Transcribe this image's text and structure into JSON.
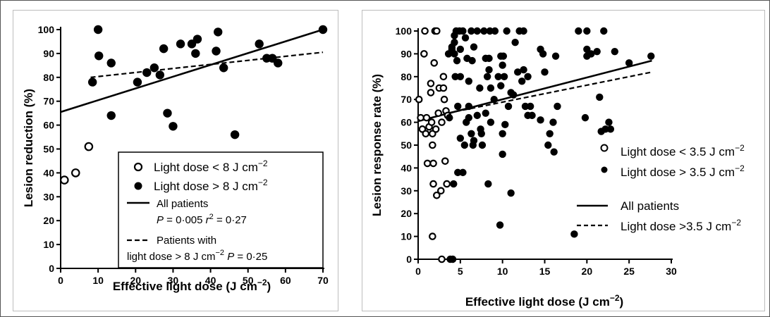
{
  "chart_data": [
    {
      "type": "scatter",
      "xlabel": "Effective light dose (J cm",
      "xlabel_sup": "−2",
      "xlabel_end": ")",
      "ylabel": "Lesion reduction (%)",
      "xlim": [
        0,
        70
      ],
      "ylim": [
        0,
        100
      ],
      "xticks": [
        "0",
        "10",
        "20",
        "30",
        "40",
        "50",
        "60",
        "70"
      ],
      "yticks": [
        "0",
        "10",
        "20",
        "30",
        "40",
        "50",
        "60",
        "70",
        "80",
        "90",
        "100"
      ],
      "series": [
        {
          "name": "Light dose < 8 J cm−2",
          "marker": "open-circle",
          "points": [
            [
              1,
              37
            ],
            [
              4,
              40
            ],
            [
              7.5,
              51
            ]
          ]
        },
        {
          "name": "Light dose > 8 J cm−2",
          "marker": "filled-circle",
          "points": [
            [
              8.5,
              78
            ],
            [
              10,
              100
            ],
            [
              10.2,
              89
            ],
            [
              13.5,
              86
            ],
            [
              13.5,
              64
            ],
            [
              20.5,
              78
            ],
            [
              23,
              82
            ],
            [
              25,
              84
            ],
            [
              26.5,
              81
            ],
            [
              27.5,
              92
            ],
            [
              28.5,
              65
            ],
            [
              30,
              59.5
            ],
            [
              32,
              94
            ],
            [
              35,
              94
            ],
            [
              36,
              90
            ],
            [
              36.5,
              96
            ],
            [
              41.5,
              91
            ],
            [
              42,
              99
            ],
            [
              43.5,
              84
            ],
            [
              46.5,
              56
            ],
            [
              53,
              94
            ],
            [
              55,
              88
            ],
            [
              56.5,
              88
            ],
            [
              58,
              86
            ],
            [
              70,
              100
            ]
          ]
        }
      ],
      "lines": [
        {
          "name": "All patients",
          "style": "solid",
          "from": [
            0,
            65.5
          ],
          "to": [
            70,
            100
          ]
        },
        {
          "name": "Patients with light dose > 8 J cm−2",
          "style": "dashed",
          "from": [
            8,
            80
          ],
          "to": [
            70,
            90.5
          ]
        }
      ],
      "legend": {
        "open_label": "Light dose < 8 J cm",
        "filled_label": "Light dose > 8 J cm",
        "unit_sup": "−2",
        "all_label": "All patients",
        "all_stats_p": "P",
        "all_stats_pval": " = 0·005",
        "all_stats_r": "r",
        "all_stats_r2": "2",
        "all_stats_rval": " = 0·27",
        "dashed_label_1": "Patients with",
        "dashed_label_2": "light dose > 8 J cm",
        "dashed_p": "P",
        "dashed_pval": " = 0·25"
      }
    },
    {
      "type": "scatter",
      "xlabel": "Effective light dose (J cm",
      "xlabel_sup": "−2",
      "xlabel_end": ")",
      "ylabel": "Lesion response rate (%)",
      "xlim": [
        0,
        30
      ],
      "ylim": [
        0,
        100
      ],
      "xticks": [
        "0",
        "5",
        "10",
        "15",
        "20",
        "25",
        "30"
      ],
      "yticks": [
        "0",
        "10",
        "20",
        "30",
        "40",
        "50",
        "60",
        "70",
        "80",
        "90",
        "100"
      ],
      "series": [
        {
          "name": "Light dose < 3.5 J cm−2",
          "marker": "open-circle",
          "points": [
            [
              0.1,
              70
            ],
            [
              0.3,
              62
            ],
            [
              0.5,
              57
            ],
            [
              0.7,
              90
            ],
            [
              0.8,
              100
            ],
            [
              0.9,
              55
            ],
            [
              1,
              62
            ],
            [
              1.1,
              42
            ],
            [
              1.3,
              58
            ],
            [
              1.5,
              77
            ],
            [
              1.5,
              73
            ],
            [
              1.6,
              60
            ],
            [
              1.7,
              55
            ],
            [
              1.7,
              50
            ],
            [
              1.8,
              42
            ],
            [
              1.8,
              33
            ],
            [
              1.7,
              10
            ],
            [
              1.9,
              86
            ],
            [
              2,
              100
            ],
            [
              2.1,
              57
            ],
            [
              2.2,
              100
            ],
            [
              2.2,
              28
            ],
            [
              2.4,
              64
            ],
            [
              2.5,
              75
            ],
            [
              2.7,
              30
            ],
            [
              2.8,
              0
            ],
            [
              2.8,
              60
            ],
            [
              3,
              80
            ],
            [
              3,
              75
            ],
            [
              3.1,
              70
            ],
            [
              3.2,
              43
            ],
            [
              3.3,
              65
            ],
            [
              3.4,
              33
            ],
            [
              3.5,
              63
            ]
          ]
        },
        {
          "name": "Light dose > 3.5 J cm−2",
          "marker": "filled-circle",
          "points": [
            [
              3.6,
              90
            ],
            [
              3.7,
              62
            ],
            [
              3.8,
              0
            ],
            [
              4,
              92
            ],
            [
              4,
              93
            ],
            [
              4.1,
              0
            ],
            [
              4.2,
              33
            ],
            [
              4.3,
              90
            ],
            [
              4.3,
              95
            ],
            [
              4.3,
              98
            ],
            [
              4.4,
              80
            ],
            [
              4.5,
              100
            ],
            [
              4.6,
              87
            ],
            [
              4.7,
              67
            ],
            [
              4.7,
              38
            ],
            [
              4.9,
              100
            ],
            [
              5,
              92
            ],
            [
              5,
              80
            ],
            [
              5,
              53
            ],
            [
              5.3,
              100
            ],
            [
              5.3,
              38
            ],
            [
              5.5,
              50
            ],
            [
              5.6,
              97
            ],
            [
              5.7,
              60
            ],
            [
              5.8,
              88
            ],
            [
              6,
              62
            ],
            [
              6,
              78
            ],
            [
              6,
              67
            ],
            [
              6.3,
              100
            ],
            [
              6.3,
              55
            ],
            [
              6.4,
              87
            ],
            [
              6.5,
              50
            ],
            [
              6.6,
              93
            ],
            [
              6.6,
              52
            ],
            [
              7,
              100
            ],
            [
              7,
              63
            ],
            [
              7.3,
              75
            ],
            [
              7.4,
              57
            ],
            [
              7.5,
              55
            ],
            [
              7.6,
              50
            ],
            [
              7.8,
              100
            ],
            [
              8,
              64
            ],
            [
              8,
              88
            ],
            [
              8.2,
              80
            ],
            [
              8.3,
              33
            ],
            [
              8.4,
              88
            ],
            [
              8.4,
              83
            ],
            [
              8.5,
              100
            ],
            [
              8.6,
              60
            ],
            [
              8.6,
              75
            ],
            [
              9,
              70
            ],
            [
              9.1,
              100
            ],
            [
              9.5,
              80
            ],
            [
              9.7,
              15
            ],
            [
              9.8,
              89
            ],
            [
              9.8,
              76
            ],
            [
              10,
              46
            ],
            [
              10,
              55
            ],
            [
              10,
              85
            ],
            [
              10.1,
              89
            ],
            [
              10.2,
              80
            ],
            [
              10.3,
              59
            ],
            [
              10.5,
              100
            ],
            [
              10.7,
              67
            ],
            [
              11,
              29
            ],
            [
              11,
              73
            ],
            [
              11.3,
              72
            ],
            [
              11.5,
              95
            ],
            [
              11.8,
              82
            ],
            [
              12,
              100
            ],
            [
              12.3,
              78
            ],
            [
              12.5,
              100
            ],
            [
              12.5,
              83
            ],
            [
              12.7,
              67
            ],
            [
              13,
              80
            ],
            [
              13,
              63
            ],
            [
              13.3,
              67
            ],
            [
              13.5,
              63
            ],
            [
              14.5,
              92
            ],
            [
              14.5,
              61
            ],
            [
              14.8,
              90
            ],
            [
              15,
              82
            ],
            [
              15.4,
              50
            ],
            [
              15.6,
              55
            ],
            [
              16,
              60
            ],
            [
              16.1,
              47
            ],
            [
              16.3,
              89
            ],
            [
              16.5,
              67
            ],
            [
              18.5,
              11
            ],
            [
              19,
              100
            ],
            [
              19.8,
              62
            ],
            [
              20,
              100
            ],
            [
              20,
              92
            ],
            [
              20,
              89
            ],
            [
              20.5,
              90
            ],
            [
              21.2,
              91
            ],
            [
              21.5,
              71
            ],
            [
              21.7,
              56
            ],
            [
              22,
              100
            ],
            [
              22.2,
              57
            ],
            [
              22.6,
              60
            ],
            [
              22.8,
              57
            ],
            [
              23.3,
              91
            ],
            [
              25,
              86
            ],
            [
              27.6,
              89
            ]
          ]
        }
      ],
      "lines": [
        {
          "name": "All patients",
          "style": "solid",
          "from": [
            0,
            60.5
          ],
          "to": [
            27.7,
            87
          ]
        },
        {
          "name": "Light dose >3.5 J cm−2",
          "style": "dashed",
          "from": [
            3.5,
            64
          ],
          "to": [
            27.7,
            82
          ]
        }
      ],
      "legend": {
        "open_label": "Light dose < 3.5 J cm",
        "filled_label": "Light dose > 3.5 J cm",
        "unit_sup": "−2",
        "all_label": "All patients",
        "dashed_label": "Light dose >3.5 J cm"
      }
    }
  ]
}
